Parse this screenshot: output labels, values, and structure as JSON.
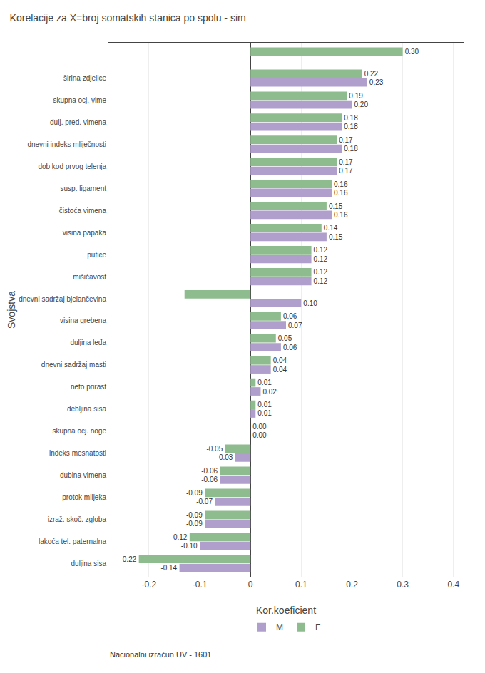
{
  "chart_data": {
    "type": "bar",
    "orientation": "horizontal",
    "title": "Korelacije za X=broj somatskih stanica po spolu - sim",
    "xlabel": "Kor.koeficient",
    "ylabel": "Svojstva",
    "annotations": [
      "Nacionalni izračun UV - 1601"
    ],
    "categories": [
      null,
      "širina zdjelice",
      "skupna ocj. vime",
      "dulj. pred. vimena",
      "dnevni indeks mliječnosti",
      "dob kod prvog telenja",
      "susp. ligament",
      "čistoća vimena",
      "visina papaka",
      "putice",
      "mišičavost",
      "dnevni sadržaj bjelančevina",
      "visina grebena",
      "duljina leđa",
      "dnevni sadržaj masti",
      "neto prirast",
      "debljina sisa",
      "skupna ocj. noge",
      "indeks mesnatosti",
      "dubina vimena",
      "protok mlijeka",
      "izraž. skoč. zgloba",
      "lakoća tel. paternalna",
      "duljina sisa"
    ],
    "series": [
      {
        "name": "M",
        "color": "#b09fcc",
        "values": [
          null,
          0.23,
          0.2,
          0.18,
          0.18,
          0.17,
          0.16,
          0.16,
          0.15,
          0.12,
          0.12,
          0.1,
          0.07,
          0.06,
          0.04,
          0.02,
          0.01,
          0.0,
          -0.03,
          -0.06,
          -0.07,
          -0.09,
          -0.1,
          -0.14
        ],
        "value_labels": [
          null,
          "0.23",
          "0.20",
          "0.18",
          "0.18",
          "0.17",
          "0.16",
          "0.16",
          "0.15",
          "0.12",
          "0.12",
          "0.10",
          "0.07",
          "0.06",
          "0.04",
          "0.02",
          "0.01",
          "0.00",
          "-0.03",
          "-0.06",
          "-0.07",
          "-0.09",
          "-0.10",
          "-0.14"
        ]
      },
      {
        "name": "F",
        "color": "#8fbc8f",
        "values": [
          0.3,
          0.22,
          0.19,
          0.18,
          0.17,
          0.17,
          0.16,
          0.15,
          0.14,
          0.12,
          0.12,
          -0.13,
          0.06,
          0.05,
          0.04,
          0.01,
          0.01,
          0.0,
          -0.05,
          -0.06,
          -0.09,
          -0.09,
          -0.12,
          -0.22
        ],
        "value_labels": [
          "0.30",
          "0.22",
          "0.19",
          "0.18",
          "0.17",
          "0.17",
          "0.16",
          "0.15",
          "0.14",
          "0.12",
          "0.12",
          null,
          "0.06",
          "0.05",
          "0.04",
          "0.01",
          "0.01",
          "0.00",
          "-0.05",
          "-0.06",
          "-0.09",
          "-0.09",
          "-0.12",
          "-0.22"
        ]
      }
    ],
    "xlim": [
      -0.28,
      0.42
    ],
    "xticks": [
      -0.2,
      -0.1,
      0,
      0.1,
      0.2,
      0.3,
      0.4
    ],
    "grid": true,
    "legend": "bottom",
    "data_labels": true
  }
}
